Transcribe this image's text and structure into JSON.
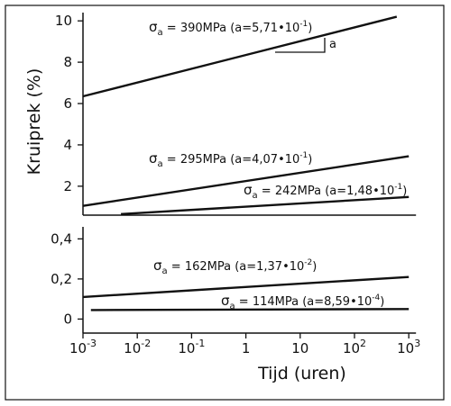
{
  "chart_data": [
    {
      "type": "line",
      "ylabel": "Kruiprek (%)",
      "xscale": "log",
      "color": "#111111",
      "xlim": [
        0.001,
        1000
      ],
      "ylim": [
        0.6,
        10.4
      ],
      "yticks": [
        2,
        4,
        6,
        8,
        10
      ],
      "series": [
        {
          "x": [
            0.001,
            600
          ],
          "values": [
            6.35,
            10.2
          ],
          "label": {
            "symbol": "σ",
            "sub": "a",
            "text": " = 390MPa (a=5,71•10",
            "sup": "-1",
            "end": ")"
          }
        },
        {
          "x": [
            0.001,
            1000
          ],
          "values": [
            1.05,
            3.45
          ],
          "label": {
            "symbol": "σ",
            "sub": "a",
            "text": " = 295MPa (a=4,07•10",
            "sup": "-1",
            "end": ")"
          }
        },
        {
          "x": [
            0.005,
            1000
          ],
          "values": [
            0.65,
            1.48
          ],
          "label": {
            "symbol": "σ",
            "sub": "a",
            "text": " = 242MPa (a=1,48•10",
            "sup": "-1",
            "end": ")"
          }
        }
      ],
      "annotation": "a"
    },
    {
      "type": "line",
      "xlabel": "Tijd (uren)",
      "xscale": "log",
      "color": "#111111",
      "xlim": [
        0.001,
        1000
      ],
      "ylim": [
        -0.07,
        0.46
      ],
      "yticks": [
        0,
        {
          "value": 0.2,
          "label": "0,2"
        },
        {
          "value": 0.4,
          "label": "0,4"
        }
      ],
      "xticks": [
        {
          "value": 0.001,
          "label": "10",
          "exponent": "-3"
        },
        {
          "value": 0.01,
          "label": "10",
          "exponent": "-2"
        },
        {
          "value": 0.1,
          "label": "10",
          "exponent": "-1"
        },
        1,
        10,
        {
          "value": 100,
          "label": "10",
          "exponent": "2"
        },
        {
          "value": 1000,
          "label": "10",
          "exponent": "3"
        }
      ],
      "series": [
        {
          "x": [
            0.001,
            1000
          ],
          "values": [
            0.11,
            0.21
          ],
          "label": {
            "symbol": "σ",
            "sub": "a",
            "text": " = 162MPa (a=1,37•10",
            "sup": "-2",
            "end": ")"
          }
        },
        {
          "x": [
            0.0014,
            1000
          ],
          "values": [
            0.045,
            0.05
          ],
          "label": {
            "symbol": "σ",
            "sub": "a",
            "text": " = 114MPa (a=8,59•10",
            "sup": "-4",
            "end": ")"
          }
        }
      ]
    }
  ]
}
